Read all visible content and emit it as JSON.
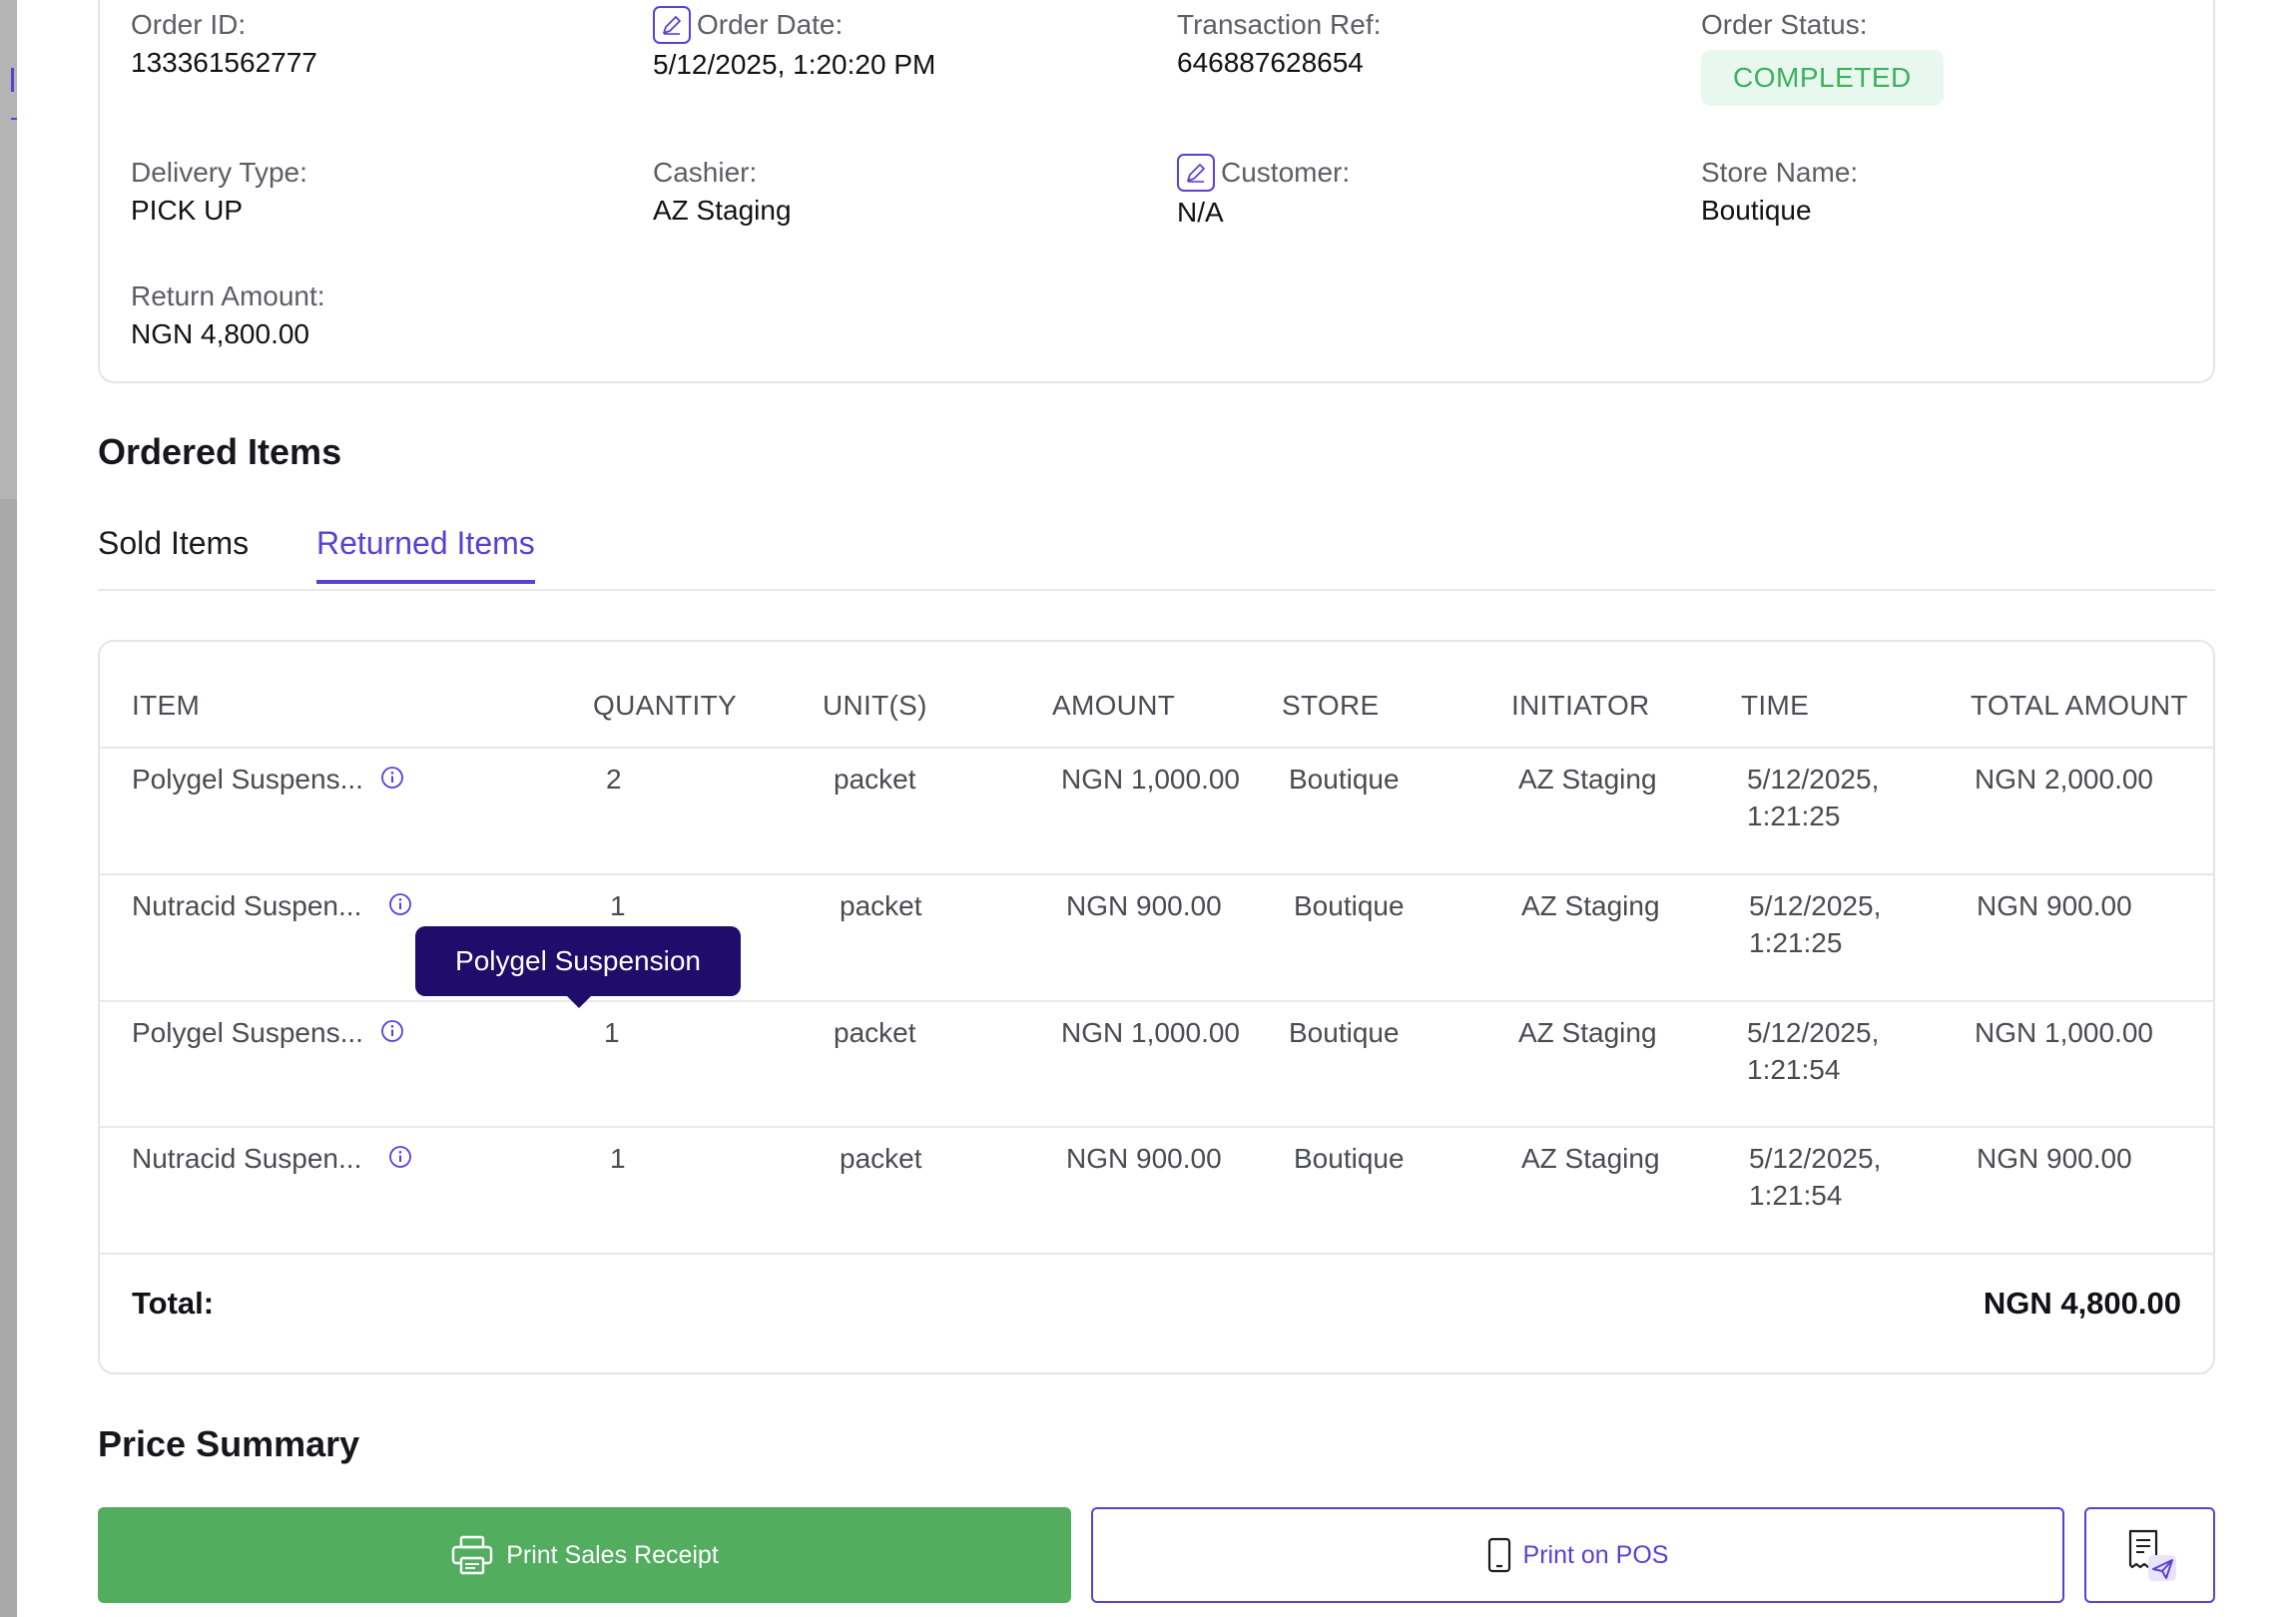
{
  "order": {
    "fields": [
      {
        "label": "Order ID:",
        "value": "133361562777"
      },
      {
        "label": "Order Date:",
        "value": "5/12/2025, 1:20:20 PM"
      },
      {
        "label": "Transaction Ref:",
        "value": "646887628654"
      },
      {
        "label": "Order Status:",
        "value": "COMPLETED"
      },
      {
        "label": "Delivery Type:",
        "value": "PICK UP"
      },
      {
        "label": "Cashier:",
        "value": "AZ Staging"
      },
      {
        "label": "Customer:",
        "value": "N/A"
      },
      {
        "label": "Store Name:",
        "value": "Boutique"
      },
      {
        "label": "Return Amount:",
        "value": "NGN 4,800.00"
      }
    ]
  },
  "ordered_items": {
    "title": "Ordered Items",
    "tabs": [
      {
        "label": "Sold Items",
        "active": false
      },
      {
        "label": "Returned Items",
        "active": true
      }
    ],
    "columns": [
      "ITEM",
      "QUANTITY",
      "UNIT(S)",
      "AMOUNT",
      "STORE",
      "INITIATOR",
      "TIME",
      "TOTAL AMOUNT"
    ],
    "rows": [
      {
        "item": "Polygel Suspens...",
        "quantity": "2",
        "unit": "packet",
        "amount": "NGN 1,000.00",
        "store": "Boutique",
        "initiator": "AZ Staging",
        "time_date": "5/12/2025,",
        "time_clock": "1:21:25",
        "total": "NGN 2,000.00"
      },
      {
        "item": "Nutracid Suspen...",
        "quantity": "1",
        "unit": "packet",
        "amount": "NGN 900.00",
        "store": "Boutique",
        "initiator": "AZ Staging",
        "time_date": "5/12/2025,",
        "time_clock": "1:21:25",
        "total": "NGN 900.00"
      },
      {
        "item": "Polygel Suspens...",
        "quantity": "1",
        "unit": "packet",
        "amount": "NGN 1,000.00",
        "store": "Boutique",
        "initiator": "AZ Staging",
        "time_date": "5/12/2025,",
        "time_clock": "1:21:54",
        "total": "NGN 1,000.00"
      },
      {
        "item": "Nutracid Suspen...",
        "quantity": "1",
        "unit": "packet",
        "amount": "NGN 900.00",
        "store": "Boutique",
        "initiator": "AZ Staging",
        "time_date": "5/12/2025,",
        "time_clock": "1:21:54",
        "total": "NGN 900.00"
      }
    ],
    "total_label": "Total:",
    "total_value": "NGN 4,800.00",
    "tooltip": "Polygel Suspension"
  },
  "price_summary": {
    "title": "Price Summary",
    "print_receipt_label": "Print Sales Receipt",
    "print_pos_label": "Print on POS"
  },
  "colors": {
    "accent": "#5b3fd6",
    "success": "#3bb15c",
    "button_green": "#52ad5f",
    "tooltip_bg": "#1f0c6b"
  },
  "icons": {
    "edit": "edit-icon",
    "info": "info-icon",
    "printer": "printer-icon",
    "phone": "mobile-device-icon",
    "send_receipt": "send-receipt-icon"
  }
}
